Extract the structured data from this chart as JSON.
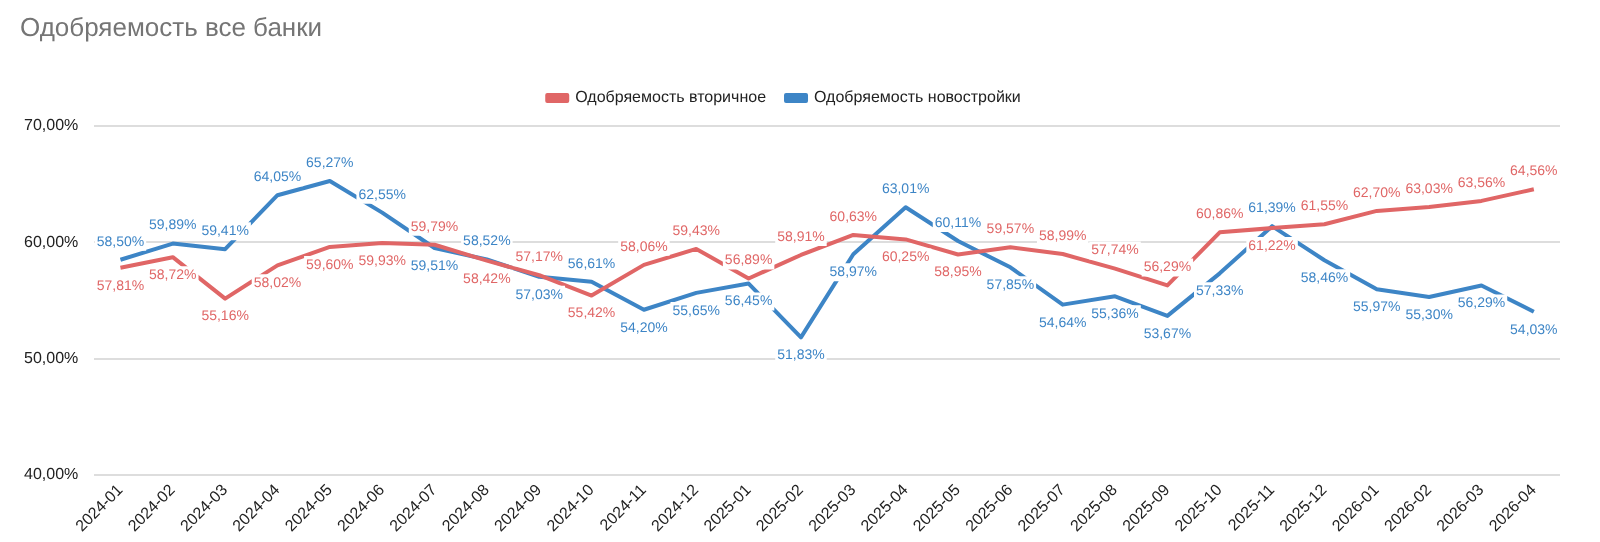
{
  "chart_data": {
    "type": "line",
    "title": "Одобряемость все банки",
    "categories": [
      "2024-01",
      "2024-02",
      "2024-03",
      "2024-04",
      "2024-05",
      "2024-06",
      "2024-07",
      "2024-08",
      "2024-09",
      "2024-10",
      "2024-11",
      "2024-12",
      "2025-01",
      "2025-02",
      "2025-03",
      "2025-04",
      "2025-05",
      "2025-06",
      "2025-07",
      "2025-08",
      "2025-09",
      "2025-10",
      "2025-11",
      "2025-12",
      "2026-01",
      "2026-02",
      "2026-03",
      "2026-04"
    ],
    "series": [
      {
        "name": "Одобряемость вторичное",
        "color": "#e06666",
        "values": [
          57.81,
          58.72,
          55.16,
          58.02,
          59.6,
          59.93,
          59.79,
          58.42,
          57.17,
          55.42,
          58.06,
          59.43,
          56.89,
          58.91,
          60.63,
          60.25,
          58.95,
          59.57,
          58.99,
          57.74,
          56.29,
          60.86,
          61.22,
          61.55,
          62.7,
          63.03,
          63.56,
          64.56
        ],
        "value_labels": [
          "57,81%",
          "58,72%",
          "55,16%",
          "58,02%",
          "59,60%",
          "59,93%",
          "59,79%",
          "58,42%",
          "57,17%",
          "55,42%",
          "58,06%",
          "59,43%",
          "56,89%",
          "58,91%",
          "60,63%",
          "60,25%",
          "58,95%",
          "59,57%",
          "58,99%",
          "57,74%",
          "56,29%",
          "60,86%",
          "61,22%",
          "61,55%",
          "62,70%",
          "63,03%",
          "63,56%",
          "64,56%"
        ]
      },
      {
        "name": "Одобряемость новостройки",
        "color": "#3d85c6",
        "values": [
          58.5,
          59.89,
          59.41,
          64.05,
          65.27,
          62.55,
          59.51,
          58.52,
          57.03,
          56.61,
          54.2,
          55.65,
          56.45,
          51.83,
          58.97,
          63.01,
          60.11,
          57.85,
          54.64,
          55.36,
          53.67,
          57.33,
          61.39,
          58.46,
          55.97,
          55.3,
          56.29,
          54.03
        ],
        "value_labels": [
          "58,50%",
          "59,89%",
          "59,41%",
          "64,05%",
          "65,27%",
          "62,55%",
          "59,51%",
          "58,52%",
          "57,03%",
          "56,61%",
          "54,20%",
          "55,65%",
          "56,45%",
          "51,83%",
          "58,97%",
          "63,01%",
          "60,11%",
          "57,85%",
          "54,64%",
          "55,36%",
          "53,67%",
          "57,33%",
          "61,39%",
          "58,46%",
          "55,97%",
          "55,30%",
          "56,29%",
          "54,03%"
        ]
      }
    ],
    "ylim": [
      40,
      70
    ],
    "yticks": [
      {
        "value": 40,
        "label": "40,00%"
      },
      {
        "value": 50,
        "label": "50,00%"
      },
      {
        "value": 60,
        "label": "60,00%"
      },
      {
        "value": 70,
        "label": "70,00%"
      }
    ],
    "grid": "y",
    "legend": "top",
    "marker": "none",
    "line_style": "solid"
  }
}
